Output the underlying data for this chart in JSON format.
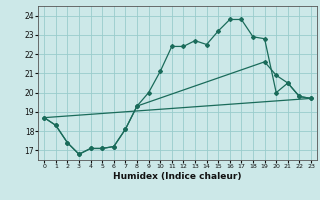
{
  "xlabel": "Humidex (Indice chaleur)",
  "bg_color": "#cce8e8",
  "grid_color": "#99cccc",
  "line_color": "#1a6b5a",
  "xlim": [
    -0.5,
    23.5
  ],
  "ylim": [
    16.5,
    24.5
  ],
  "yticks": [
    17,
    18,
    19,
    20,
    21,
    22,
    23,
    24
  ],
  "xticks": [
    0,
    1,
    2,
    3,
    4,
    5,
    6,
    7,
    8,
    9,
    10,
    11,
    12,
    13,
    14,
    15,
    16,
    17,
    18,
    19,
    20,
    21,
    22,
    23
  ],
  "line1_x": [
    0,
    1,
    2,
    3,
    4,
    5,
    6,
    7,
    8,
    9,
    10,
    11,
    12,
    13,
    14,
    15,
    16,
    17,
    18,
    19,
    20,
    21,
    22,
    23
  ],
  "line1_y": [
    18.7,
    18.3,
    17.4,
    16.8,
    17.1,
    17.1,
    17.2,
    18.1,
    19.3,
    20.0,
    21.1,
    22.4,
    22.4,
    22.7,
    22.5,
    23.2,
    23.8,
    23.8,
    22.9,
    22.8,
    20.0,
    20.5,
    19.8,
    19.7
  ],
  "line2_x": [
    0,
    1,
    2,
    3,
    4,
    5,
    6,
    7,
    8,
    19,
    20,
    21,
    22,
    23
  ],
  "line2_y": [
    18.7,
    18.3,
    17.4,
    16.8,
    17.1,
    17.1,
    17.2,
    18.1,
    19.3,
    21.6,
    20.9,
    20.5,
    19.8,
    19.7
  ],
  "line3_x": [
    0,
    23
  ],
  "line3_y": [
    18.7,
    19.7
  ]
}
